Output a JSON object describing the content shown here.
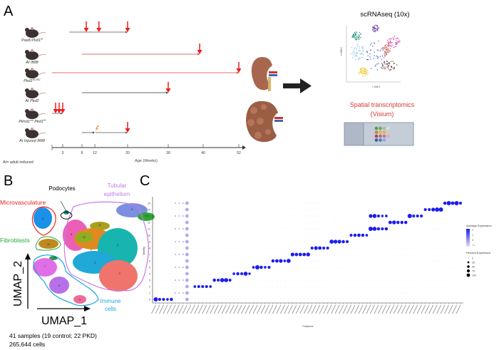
{
  "panel_a": {
    "label": "A",
    "models": [
      {
        "name": "Pax8 Pkd1",
        "sup": "f/f",
        "start": 5,
        "end": 20,
        "arrows": [
          10,
          13,
          20
        ],
        "color": "#555555"
      },
      {
        "name": "AI Ift88",
        "sup": "",
        "start": 9,
        "end": 39,
        "arrows": [
          39
        ],
        "color": "#e0393e"
      },
      {
        "name": "Pkd1",
        "sup": "RC/RC",
        "start": 0,
        "end": 52,
        "arrows": [
          52
        ],
        "color": "#e0393e"
      },
      {
        "name": "AI Pkd2",
        "sup": "",
        "start": 9,
        "end": 30,
        "arrows": [
          30
        ],
        "color": "#333333"
      },
      {
        "name": "Pkhd1",
        "sup": "cre",
        "name2": " Pkd1",
        "sup2": "f/f",
        "start": 0,
        "end": 3,
        "arrows": [
          1,
          2,
          3
        ],
        "color": "#555555"
      },
      {
        "name": "AI Injured Ift88",
        "sup": "",
        "start": 9,
        "end": 20,
        "arrows": [
          20
        ],
        "injury": 12,
        "color": "#555555"
      }
    ],
    "axis_ticks": [
      3,
      9,
      12,
      20,
      30,
      40,
      52
    ],
    "axis_label": "Age (Weeks)",
    "footnote": "AI= adult induced",
    "scrnaseq_title": "scRNAseq (10x)",
    "tsne_xlabel": "t-SNE1",
    "tsne_ylabel": "t-SNE2",
    "spatial_title_1": "Spatial transcriptomics",
    "spatial_title_2": "(Visium)"
  },
  "panel_b": {
    "label": "B",
    "groups": {
      "podocytes": "Podocytes",
      "tubular_1": "Tubular",
      "tubular_2": "epithelium",
      "microvasculature": "Microvasculature",
      "fibroblasts": "Fibroblasts",
      "immune_1": "Immune",
      "immune_2": "cells"
    },
    "colors": {
      "podocytes": "#111111",
      "tubular": "#c47be8",
      "microvasculature": "#e8231f",
      "fibroblasts": "#22a83a",
      "immune": "#1aa5e0"
    },
    "xlabel": "UMAP_1",
    "ylabel": "UMAP_2",
    "summary_1": "41 samples (19 control; 22 PKD)",
    "summary_2": "265,644 cells"
  },
  "chart_data": {
    "type": "dotplot",
    "title": "",
    "xlabel": "Features",
    "ylabel": "Identity",
    "clusters": [
      "0",
      "1",
      "2",
      "3",
      "4",
      "5",
      "6",
      "7",
      "8",
      "9",
      "10",
      "11",
      "12",
      "13",
      "14",
      "15"
    ],
    "n_features": 79,
    "markers": [
      {
        "cluster": 0,
        "features": [
          0,
          4
        ],
        "percent": [
          100,
          40,
          40,
          30,
          50
        ]
      },
      {
        "cluster": 2,
        "features": [
          10,
          14
        ],
        "percent": [
          30,
          40,
          40,
          40,
          30
        ]
      },
      {
        "cluster": 3,
        "features": [
          15,
          19
        ],
        "percent": [
          50,
          40,
          90,
          90,
          40
        ]
      },
      {
        "cluster": 4,
        "features": [
          20,
          24
        ],
        "percent": [
          30,
          50,
          40,
          90,
          25
        ]
      },
      {
        "cluster": 5,
        "features": [
          25,
          29
        ],
        "percent": [
          30,
          100,
          50,
          30,
          40
        ]
      },
      {
        "cluster": 6,
        "features": [
          30,
          34
        ],
        "percent": [
          50,
          60,
          70,
          30,
          90
        ]
      },
      {
        "cluster": 7,
        "features": [
          35,
          39
        ],
        "percent": [
          70,
          60,
          60,
          60,
          80
        ]
      },
      {
        "cluster": 8,
        "features": [
          40,
          44
        ],
        "percent": [
          40,
          70,
          60,
          40,
          40
        ]
      },
      {
        "cluster": 9,
        "features": [
          45,
          49
        ],
        "percent": [
          90,
          80,
          70,
          50,
          40
        ]
      },
      {
        "cluster": 10,
        "features": [
          50,
          54
        ],
        "percent": [
          40,
          50,
          60,
          50,
          30
        ]
      },
      {
        "cluster": 11,
        "features": [
          55,
          59
        ],
        "percent": [
          100,
          90,
          50,
          40,
          50
        ]
      },
      {
        "cluster": 12,
        "features": [
          60,
          64
        ],
        "percent": [
          60,
          80,
          50,
          50,
          50
        ]
      },
      {
        "cluster": 13,
        "features": [
          55,
          59
        ],
        "percent": [
          70,
          90,
          40,
          25,
          30
        ]
      },
      {
        "cluster": 13,
        "features": [
          65,
          68
        ],
        "percent": [
          100,
          40,
          40,
          40
        ]
      },
      {
        "cluster": 14,
        "features": [
          69,
          73
        ],
        "percent": [
          40,
          40,
          70,
          100,
          100
        ]
      },
      {
        "cluster": 15,
        "features": [
          74,
          78
        ],
        "percent": [
          50,
          100,
          60,
          100,
          40
        ]
      }
    ],
    "ubiquitous_feature": 8,
    "legend_expression_title": "Average Expression",
    "legend_expression_ticks": [
      "2",
      "1",
      "0",
      "−1"
    ],
    "legend_percent_title": "Percent Expressed",
    "legend_percent_ticks": [
      "0",
      "25",
      "50",
      "75",
      "100"
    ],
    "color_low": "#d9d4ee",
    "color_high": "#1c1cf0"
  },
  "panel_c": {
    "label": "C"
  }
}
